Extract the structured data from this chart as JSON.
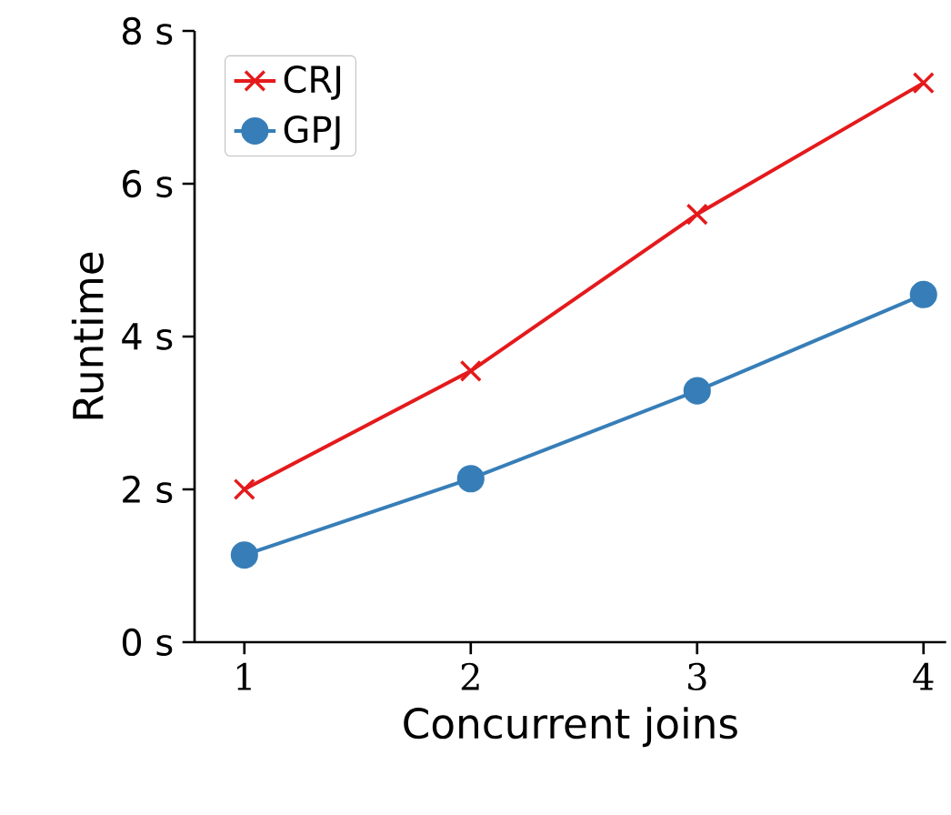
{
  "chart_data": {
    "type": "line",
    "xlabel": "Concurrent joins",
    "ylabel": "Runtime",
    "x": [
      1,
      2,
      3,
      4
    ],
    "series": [
      {
        "name": "CRJ",
        "color": "#e41a1c",
        "marker": "cross",
        "values": [
          2.0,
          3.55,
          5.6,
          7.32
        ]
      },
      {
        "name": "GPJ",
        "color": "#377eb8",
        "marker": "circle",
        "values": [
          1.14,
          2.14,
          3.29,
          4.55
        ]
      }
    ],
    "xlim": [
      0.78,
      4.1
    ],
    "ylim": [
      0,
      8
    ],
    "xticks": [
      1,
      2,
      3,
      4
    ],
    "yticks": [
      {
        "value": 0,
        "label": "0 s"
      },
      {
        "value": 2,
        "label": "2 s"
      },
      {
        "value": 4,
        "label": "4 s"
      },
      {
        "value": 6,
        "label": "6 s"
      },
      {
        "value": 8,
        "label": "8 s"
      }
    ],
    "legend": "top left",
    "grid": false
  }
}
